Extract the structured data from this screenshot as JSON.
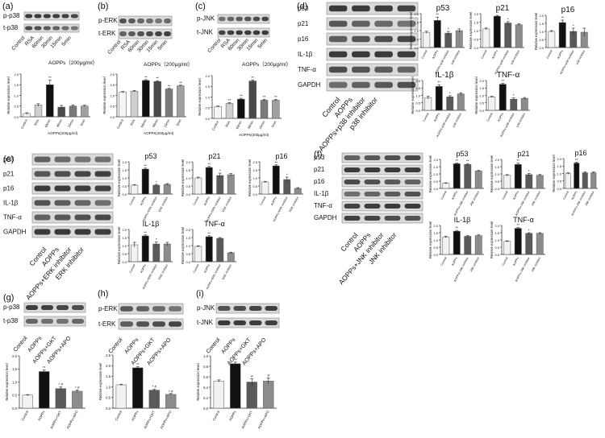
{
  "figure": {
    "a": {
      "label": "(a)",
      "blot_rows": [
        "p-p38",
        "t-p38"
      ],
      "lanes": [
        "Control",
        "RSA",
        "60min",
        "30min",
        "15min",
        "5min"
      ],
      "group_label": "AOPPs（200μg/ml）"
    },
    "b": {
      "label": "(b)",
      "blot_rows": [
        "p-ERK",
        "t-ERK"
      ],
      "lanes": [
        "Control",
        "RSA",
        "60min",
        "30min",
        "15min",
        "5min"
      ],
      "group_label": "AOPPs（200μg/ml）"
    },
    "c": {
      "label": "(c)",
      "blot_rows": [
        "p-JNK",
        "t-JNK"
      ],
      "lanes": [
        "Control",
        "RSA",
        "60min",
        "30min",
        "15min",
        "5min"
      ],
      "group_label": "AOPPs（200μg/ml）"
    },
    "d": {
      "label": "(d)",
      "blot_rows": [
        "p53",
        "p21",
        "p16",
        "IL-1β",
        "TNF-α",
        "GAPDH"
      ],
      "lanes": [
        "Control",
        "AOPPs",
        "AOPPs+p38 inhibitor",
        "p38 inhibitor"
      ]
    },
    "e": {
      "label": "(e)",
      "blot_rows": [
        "p53",
        "p21",
        "p16",
        "IL-1β",
        "TNF-α",
        "GAPDH"
      ],
      "lanes": [
        "Control",
        "AOPPs",
        "AOPPs+ERK inhibitor",
        "ERK inhibitor"
      ]
    },
    "f": {
      "label": "(f)",
      "blot_rows": [
        "p53",
        "p21",
        "p16",
        "IL-1β",
        "TNF-α",
        "GAPDH"
      ],
      "lanes": [
        "Control",
        "AOPPs",
        "AOPPs+JNK inhibitor",
        "JNK inhibitor"
      ]
    },
    "g": {
      "label": "(g)",
      "blot_rows": [
        "p-p38",
        "t-p38"
      ],
      "lanes": [
        "Control",
        "AOPPs",
        "AOPPs+GKT",
        "AOPPs+APO"
      ]
    },
    "h": {
      "label": "(h)",
      "blot_rows": [
        "p-ERK",
        "t-ERK"
      ],
      "lanes": [
        "Control",
        "AOPPs",
        "AOPPs+GKT",
        "AOPPs+APO"
      ]
    },
    "i": {
      "label": "(i)",
      "blot_rows": [
        "p-JNK",
        "t-JNK"
      ],
      "lanes": [
        "Control",
        "AOPPs",
        "AOPPs+GKT",
        "AOPPs+APO"
      ]
    }
  },
  "chart_data": [
    {
      "id": "a",
      "type": "bar",
      "title": "",
      "ylabel": "Relative expression level",
      "xlabel": "AOPPs(200μg/ml)",
      "categories": [
        "Control",
        "RSA",
        "60min",
        "30min",
        "15min",
        "5min"
      ],
      "values": [
        0.15,
        0.55,
        1.5,
        0.45,
        0.5,
        0.5
      ],
      "errors": [
        0.04,
        0.06,
        0.22,
        0.08,
        0.05,
        0.04
      ],
      "ylim": [
        0,
        2.0
      ],
      "yticks": [
        0.0,
        0.5,
        1.0,
        1.5,
        2.0
      ],
      "colors": [
        "#f5f5f5",
        "#cfcfcf",
        "#111111",
        "#4a4a4a",
        "#7a7a7a",
        "#a0a0a0"
      ],
      "marks": [
        "",
        "",
        "**",
        "",
        "",
        ""
      ]
    },
    {
      "id": "b",
      "type": "bar",
      "title": "",
      "ylabel": "Relative expression level",
      "xlabel": "AOPPs(200μg/ml)",
      "categories": [
        "Control",
        "RSA",
        "60min",
        "30min",
        "15min",
        "5min"
      ],
      "values": [
        1.15,
        1.2,
        1.7,
        1.65,
        1.3,
        1.45
      ],
      "errors": [
        0.03,
        0.03,
        0.04,
        0.04,
        0.03,
        0.03
      ],
      "ylim": [
        0,
        2.0
      ],
      "yticks": [
        0.0,
        0.5,
        1.0,
        1.5,
        2.0
      ],
      "colors": [
        "#f5f5f5",
        "#cfcfcf",
        "#111111",
        "#4a4a4a",
        "#7a7a7a",
        "#a0a0a0"
      ],
      "marks": [
        "",
        "",
        "**",
        "**",
        "**",
        "**"
      ]
    },
    {
      "id": "c",
      "type": "bar",
      "title": "",
      "ylabel": "Relative expression level",
      "xlabel": "AOPPs(200μg/ml)",
      "categories": [
        "Control",
        "RSA",
        "60min",
        "30min",
        "15min",
        "5min"
      ],
      "values": [
        0.55,
        0.7,
        0.9,
        1.75,
        0.85,
        0.85
      ],
      "errors": [
        0.03,
        0.04,
        0.04,
        0.05,
        0.04,
        0.04
      ],
      "ylim": [
        0,
        2.0
      ],
      "yticks": [
        0.0,
        0.5,
        1.0,
        1.5,
        2.0
      ],
      "colors": [
        "#f5f5f5",
        "#cfcfcf",
        "#111111",
        "#4a4a4a",
        "#7a7a7a",
        "#a0a0a0"
      ],
      "marks": [
        "",
        "**",
        "**",
        "**",
        "**",
        "**"
      ]
    },
    {
      "id": "d-p53",
      "type": "bar",
      "title": "p53",
      "ylabel": "Relative expression level",
      "categories": [
        "Control",
        "AOPPs",
        "AOPPs+p38 inhibitor",
        "p38 inhibitor"
      ],
      "values": [
        0.9,
        1.6,
        0.85,
        1.0
      ],
      "errors": [
        0.06,
        0.2,
        0.1,
        0.1
      ],
      "ylim": [
        0,
        2.0
      ],
      "colors": [
        "#f2f2f2",
        "#111111",
        "#5a5a5a",
        "#8c8c8c"
      ],
      "marks": [
        "",
        "**",
        "*",
        ""
      ]
    },
    {
      "id": "d-p21",
      "type": "bar",
      "title": "p21",
      "ylabel": "Relative expression level",
      "categories": [
        "Control",
        "AOPPs",
        "AOPPs+p38 inhibitor",
        "p38 inhibitor"
      ],
      "values": [
        1.1,
        1.85,
        1.45,
        1.35
      ],
      "errors": [
        0.05,
        0.05,
        0.08,
        0.06
      ],
      "ylim": [
        0,
        2.0
      ],
      "colors": [
        "#f2f2f2",
        "#111111",
        "#5a5a5a",
        "#8c8c8c"
      ],
      "marks": [
        "",
        "**",
        "*",
        ""
      ]
    },
    {
      "id": "d-p16",
      "type": "bar",
      "title": "p16",
      "ylabel": "Relative expression level",
      "categories": [
        "Control",
        "AOPPs",
        "AOPPs+p38 inhibitor",
        "p38 inhibitor"
      ],
      "values": [
        1.0,
        1.55,
        1.0,
        0.95
      ],
      "errors": [
        0.05,
        0.15,
        0.2,
        0.25
      ],
      "ylim": [
        0,
        2.0
      ],
      "colors": [
        "#f2f2f2",
        "#111111",
        "#5a5a5a",
        "#8c8c8c"
      ],
      "marks": [
        "",
        "**",
        "*",
        ""
      ]
    },
    {
      "id": "d-il1b",
      "type": "bar",
      "title": "IL-1β",
      "ylabel": "Relative expression level",
      "categories": [
        "Control",
        "AOPPs",
        "AOPPs+p38 inhibitor",
        "p38 inhibitor"
      ],
      "values": [
        0.85,
        1.6,
        0.9,
        1.1
      ],
      "errors": [
        0.1,
        0.12,
        0.08,
        0.08
      ],
      "ylim": [
        0,
        2.0
      ],
      "colors": [
        "#f2f2f2",
        "#111111",
        "#5a5a5a",
        "#8c8c8c"
      ],
      "marks": [
        "",
        "**",
        "*",
        ""
      ]
    },
    {
      "id": "d-tnfa",
      "type": "bar",
      "title": "TNF-α",
      "ylabel": "Relative expression level",
      "categories": [
        "Control",
        "AOPPs",
        "AOPPs+p38 inhibitor",
        "p38 inhibitor"
      ],
      "values": [
        0.9,
        1.75,
        0.75,
        0.8
      ],
      "errors": [
        0.05,
        0.06,
        0.08,
        0.06
      ],
      "ylim": [
        0,
        2.0
      ],
      "colors": [
        "#f2f2f2",
        "#111111",
        "#5a5a5a",
        "#8c8c8c"
      ],
      "marks": [
        "",
        "**",
        "*",
        ""
      ]
    },
    {
      "id": "e-p53",
      "type": "bar",
      "title": "p53",
      "ylabel": "Relative expression level",
      "categories": [
        "Control",
        "AOPPs",
        "AOPPs+ERK inhibitor",
        "ERK inhibitor"
      ],
      "values": [
        0.55,
        1.55,
        0.55,
        0.6
      ],
      "errors": [
        0.04,
        0.06,
        0.05,
        0.05
      ],
      "ylim": [
        0,
        2.0
      ],
      "colors": [
        "#f2f2f2",
        "#111111",
        "#5a5a5a",
        "#8c8c8c"
      ],
      "marks": [
        "",
        "**",
        "*",
        ""
      ]
    },
    {
      "id": "e-p21",
      "type": "bar",
      "title": "p21",
      "ylabel": "Relative expression level",
      "categories": [
        "Control",
        "AOPPs",
        "AOPPs+ERK inhibitor",
        "ERK inhibitor"
      ],
      "values": [
        1.0,
        1.65,
        1.15,
        1.2
      ],
      "errors": [
        0.05,
        0.06,
        0.15,
        0.08
      ],
      "ylim": [
        0,
        2.0
      ],
      "colors": [
        "#f2f2f2",
        "#111111",
        "#5a5a5a",
        "#8c8c8c"
      ],
      "marks": [
        "",
        "**",
        "*",
        ""
      ]
    },
    {
      "id": "e-p16",
      "type": "bar",
      "title": "p16",
      "ylabel": "Relative expression level",
      "categories": [
        "Control",
        "AOPPs",
        "AOPPs+ERK inhibitor",
        "ERK inhibitor"
      ],
      "values": [
        0.75,
        1.75,
        0.9,
        0.35
      ],
      "errors": [
        0.04,
        0.06,
        0.15,
        0.05
      ],
      "ylim": [
        0,
        2.0
      ],
      "colors": [
        "#f2f2f2",
        "#111111",
        "#5a5a5a",
        "#8c8c8c"
      ],
      "marks": [
        "",
        "**",
        "*",
        ""
      ]
    },
    {
      "id": "e-il1b",
      "type": "bar",
      "title": "IL-1β",
      "ylabel": "Relative expression level",
      "categories": [
        "Control",
        "AOPPs",
        "AOPPs+ERK inhibitor",
        "ERK inhibitor"
      ],
      "values": [
        1.05,
        1.6,
        1.1,
        1.1
      ],
      "errors": [
        0.15,
        0.06,
        0.12,
        0.1
      ],
      "ylim": [
        0,
        2.0
      ],
      "colors": [
        "#f2f2f2",
        "#111111",
        "#5a5a5a",
        "#8c8c8c"
      ],
      "marks": [
        "",
        "**",
        "*",
        ""
      ]
    },
    {
      "id": "e-tnfa",
      "type": "bar",
      "title": "TNF-α",
      "ylabel": "Relative expression level",
      "categories": [
        "Control",
        "AOPPs",
        "AOPPs+ERK inhibitor",
        "ERK inhibitor"
      ],
      "values": [
        0.95,
        1.55,
        1.45,
        0.55
      ],
      "errors": [
        0.04,
        0.06,
        0.05,
        0.04
      ],
      "ylim": [
        0,
        2.0
      ],
      "colors": [
        "#f2f2f2",
        "#111111",
        "#5a5a5a",
        "#8c8c8c"
      ],
      "marks": [
        "",
        "**",
        "",
        ""
      ]
    },
    {
      "id": "f-p53",
      "type": "bar",
      "title": "p53",
      "ylabel": "Relative expression level",
      "categories": [
        "Control",
        "AOPPs",
        "AOPPs+JNK inhibitor",
        "JNK inhibitor"
      ],
      "values": [
        0.35,
        1.7,
        1.65,
        1.2
      ],
      "errors": [
        0.04,
        0.05,
        0.06,
        0.05
      ],
      "ylim": [
        0,
        2.0
      ],
      "colors": [
        "#f2f2f2",
        "#111111",
        "#5a5a5a",
        "#8c8c8c"
      ],
      "marks": [
        "",
        "**",
        "**",
        ""
      ]
    },
    {
      "id": "f-p21",
      "type": "bar",
      "title": "p21",
      "ylabel": "Relative expression level",
      "categories": [
        "Control",
        "AOPPs",
        "AOPPs+JNK inhibitor",
        "JNK inhibitor"
      ],
      "values": [
        0.9,
        1.65,
        0.95,
        0.9
      ],
      "errors": [
        0.05,
        0.1,
        0.08,
        0.06
      ],
      "ylim": [
        0,
        2.0
      ],
      "colors": [
        "#f2f2f2",
        "#111111",
        "#5a5a5a",
        "#8c8c8c"
      ],
      "marks": [
        "",
        "**",
        "*",
        ""
      ]
    },
    {
      "id": "f-p16",
      "type": "bar",
      "title": "p16",
      "ylabel": "Relative expression level",
      "categories": [
        "Control",
        "AOPPs",
        "AOPPs+JNK inhibitor",
        "JNK inhibitor"
      ],
      "values": [
        1.0,
        1.7,
        1.05,
        1.05
      ],
      "errors": [
        0.05,
        0.06,
        0.05,
        0.05
      ],
      "ylim": [
        0,
        2.0
      ],
      "colors": [
        "#f2f2f2",
        "#111111",
        "#5a5a5a",
        "#8c8c8c"
      ],
      "marks": [
        "",
        "**",
        "",
        ""
      ]
    },
    {
      "id": "f-il1b",
      "type": "bar",
      "title": "IL-1β",
      "ylabel": "Relative expression level",
      "categories": [
        "Control",
        "AOPPs",
        "AOPPs+JNK inhibitor",
        "JNK inhibitor"
      ],
      "values": [
        1.2,
        1.6,
        1.25,
        1.3
      ],
      "errors": [
        0.05,
        0.06,
        0.05,
        0.05
      ],
      "ylim": [
        0,
        2.0
      ],
      "colors": [
        "#f2f2f2",
        "#111111",
        "#5a5a5a",
        "#8c8c8c"
      ],
      "marks": [
        "",
        "**",
        "",
        ""
      ]
    },
    {
      "id": "f-tnfa",
      "type": "bar",
      "title": "TNF-α",
      "ylabel": "Relative expression level",
      "categories": [
        "Control",
        "AOPPs",
        "AOPPs+JNK inhibitor",
        "JNK inhibitor"
      ],
      "values": [
        0.9,
        1.8,
        1.45,
        1.45
      ],
      "errors": [
        0.04,
        0.05,
        0.05,
        0.05
      ],
      "ylim": [
        0,
        2.0
      ],
      "colors": [
        "#f2f2f2",
        "#111111",
        "#5a5a5a",
        "#8c8c8c"
      ],
      "marks": [
        "",
        "**",
        "*",
        ""
      ]
    },
    {
      "id": "g",
      "type": "bar",
      "title": "",
      "ylabel": "Relative expression level",
      "categories": [
        "Control",
        "AOPPs",
        "AOPPs+GKT",
        "AOPPs+APO"
      ],
      "values": [
        0.5,
        1.4,
        0.75,
        0.65
      ],
      "errors": [
        0.02,
        0.06,
        0.06,
        0.05
      ],
      "ylim": [
        0,
        2.0
      ],
      "yticks": [
        0.0,
        0.5,
        1.0,
        1.5,
        2.0
      ],
      "colors": [
        "#f2f2f2",
        "#111111",
        "#5a5a5a",
        "#8c8c8c"
      ],
      "marks": [
        "",
        "**",
        "* #",
        "* #"
      ]
    },
    {
      "id": "h",
      "type": "bar",
      "title": "",
      "ylabel": "Relative expression level",
      "categories": [
        "Control",
        "AOPPs",
        "AOPPs+GKT",
        "AOPPs+APO"
      ],
      "values": [
        1.1,
        1.9,
        0.85,
        0.65
      ],
      "errors": [
        0.03,
        0.05,
        0.05,
        0.04
      ],
      "ylim": [
        0,
        2.5
      ],
      "yticks": [
        0.0,
        0.5,
        1.0,
        1.5,
        2.0,
        2.5
      ],
      "colors": [
        "#f2f2f2",
        "#111111",
        "#5a5a5a",
        "#8c8c8c"
      ],
      "marks": [
        "",
        "**",
        "* #",
        "* #"
      ]
    },
    {
      "id": "i",
      "type": "bar",
      "title": "",
      "ylabel": "Relative expression level",
      "categories": [
        "Control",
        "AOPPs",
        "AOPPs+GKT",
        "AOPPs+APO"
      ],
      "values": [
        0.52,
        0.85,
        0.5,
        0.52
      ],
      "errors": [
        0.02,
        0.03,
        0.06,
        0.06
      ],
      "ylim": [
        0,
        1.0
      ],
      "yticks": [
        0.0,
        0.2,
        0.4,
        0.6,
        0.8,
        1.0
      ],
      "colors": [
        "#f2f2f2",
        "#111111",
        "#5a5a5a",
        "#8c8c8c"
      ],
      "marks": [
        "",
        "**",
        "#",
        "#"
      ]
    }
  ]
}
